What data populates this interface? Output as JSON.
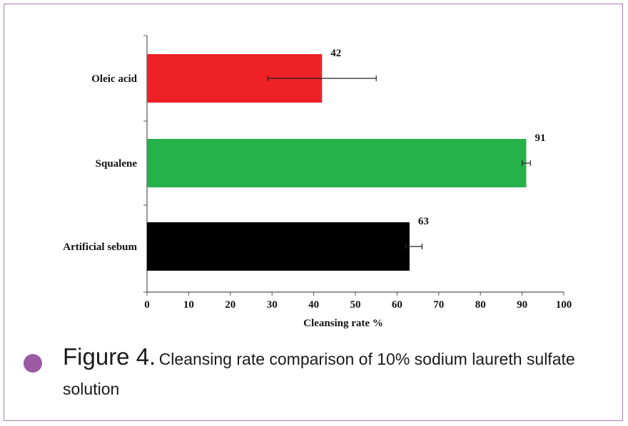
{
  "chart_data": {
    "type": "bar",
    "orientation": "horizontal",
    "categories": [
      "Oleic acid",
      "Squalene",
      "Artificial sebum"
    ],
    "values": [
      42,
      91,
      63
    ],
    "error_bars": [
      {
        "low": 29,
        "high": 55
      },
      {
        "low": 90,
        "high": 92
      },
      {
        "low": 62,
        "high": 66
      }
    ],
    "data_labels": [
      "42",
      "91",
      "63"
    ],
    "colors": [
      "#ee2127",
      "#25b24a",
      "#000000"
    ],
    "xlabel": "Cleansing rate %",
    "xlim": [
      0,
      100
    ],
    "xticks": [
      "0",
      "10",
      "20",
      "30",
      "40",
      "50",
      "60",
      "70",
      "80",
      "90",
      "100"
    ],
    "grid": false,
    "legend": "none"
  },
  "caption": {
    "figure_number": "Figure 4.",
    "text": "Cleansing rate comparison of 10% sodium laureth sulfate solution"
  },
  "colors": {
    "frame_border": "#a77eb0",
    "bullet": "#9b5aa3"
  }
}
